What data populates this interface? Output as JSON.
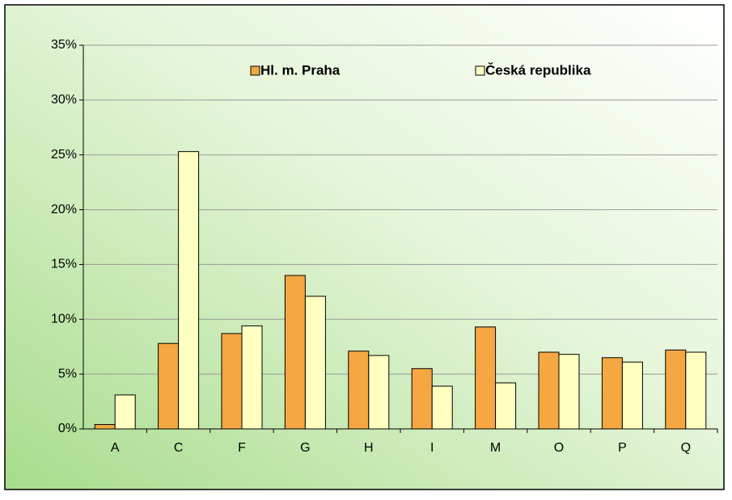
{
  "chart_data": {
    "type": "bar",
    "categories": [
      "A",
      "C",
      "F",
      "G",
      "H",
      "I",
      "M",
      "O",
      "P",
      "Q"
    ],
    "series": [
      {
        "name": "Hl. m. Praha",
        "color": "#f5a742",
        "values": [
          0.4,
          7.8,
          8.7,
          14.0,
          7.1,
          5.5,
          9.3,
          7.0,
          6.5,
          7.2
        ]
      },
      {
        "name": "Česká republika",
        "color": "#ffffc0",
        "values": [
          3.1,
          25.3,
          9.4,
          12.1,
          6.7,
          3.9,
          4.2,
          6.8,
          6.1,
          7.0
        ]
      }
    ],
    "ylim": [
      0,
      35
    ],
    "yticks": [
      {
        "value": 0,
        "label": "0%"
      },
      {
        "value": 5,
        "label": "5%"
      },
      {
        "value": 10,
        "label": "10%"
      },
      {
        "value": 15,
        "label": "15%"
      },
      {
        "value": 20,
        "label": "20%"
      },
      {
        "value": 25,
        "label": "25%"
      },
      {
        "value": 30,
        "label": "30%"
      },
      {
        "value": 35,
        "label": "35%"
      }
    ],
    "grid": true
  }
}
